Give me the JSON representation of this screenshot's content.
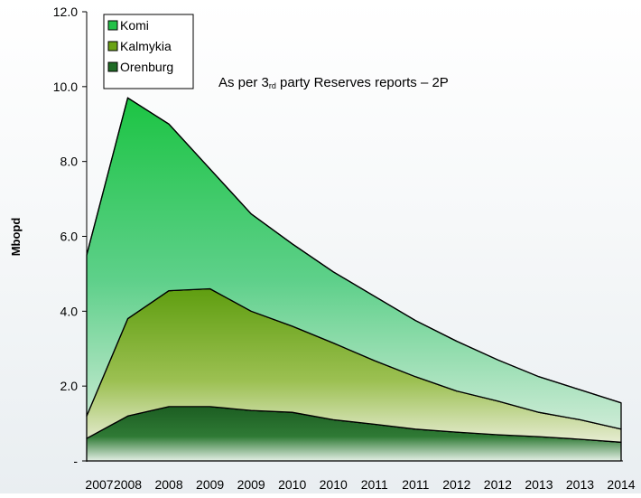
{
  "chart_data": {
    "type": "area",
    "stacked": true,
    "categories": [
      "2007",
      "2008",
      "2008",
      "2009",
      "2009",
      "2010",
      "2010",
      "2011",
      "2011",
      "2012",
      "2012",
      "2013",
      "2013",
      "2014"
    ],
    "series": [
      {
        "name": "Orenburg",
        "values": [
          0.6,
          1.2,
          1.45,
          1.45,
          1.35,
          1.3,
          1.1,
          0.98,
          0.85,
          0.77,
          0.7,
          0.65,
          0.58,
          0.5
        ]
      },
      {
        "name": "Kalmykia",
        "values": [
          0.6,
          2.6,
          3.1,
          3.15,
          2.65,
          2.3,
          2.05,
          1.7,
          1.4,
          1.1,
          0.9,
          0.65,
          0.52,
          0.35
        ]
      },
      {
        "name": "Komi",
        "values": [
          4.3,
          5.9,
          4.45,
          3.2,
          2.6,
          2.2,
          1.9,
          1.72,
          1.5,
          1.33,
          1.1,
          0.95,
          0.8,
          0.7
        ]
      }
    ],
    "colors": {
      "Orenburg": "#1f6b25",
      "Kalmykia": "#6aa214",
      "Komi": "#22c148"
    },
    "ylabel": "Mbopd",
    "ylim": [
      0,
      12
    ],
    "yticks": [
      "-",
      "2.0",
      "4.0",
      "6.0",
      "8.0",
      "10.0",
      "12.0"
    ],
    "annotation": {
      "prefix": "As per 3",
      "superscript": "rd",
      "suffix": " party Reserves reports – 2P"
    },
    "legend": {
      "placement": "top-left",
      "order": [
        "Komi",
        "Kalmykia",
        "Orenburg"
      ]
    },
    "grid": false
  }
}
